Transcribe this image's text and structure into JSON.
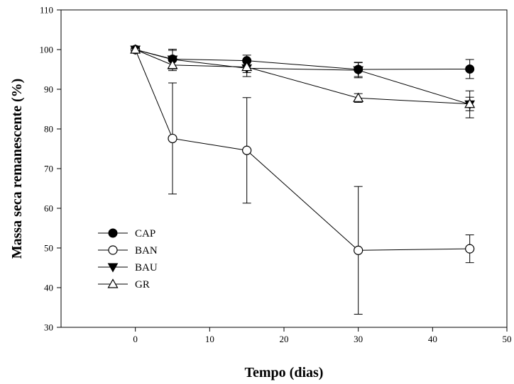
{
  "chart_data": {
    "type": "line",
    "xlabel": "Tempo (dias)",
    "ylabel": "Massa seca remanescente (%)",
    "xlim": [
      -10,
      50
    ],
    "ylim": [
      30,
      110
    ],
    "xticks": [
      0,
      10,
      20,
      30,
      40,
      50
    ],
    "yticks": [
      30,
      40,
      50,
      60,
      70,
      80,
      90,
      100,
      110
    ],
    "grid": false,
    "legend_position": "bottom-left",
    "series": [
      {
        "name": "CAP",
        "marker": "circle-filled",
        "x": [
          0,
          5,
          15,
          30,
          45
        ],
        "y": [
          100,
          97.6,
          97.2,
          95,
          95.1
        ],
        "err": [
          0,
          2.5,
          1.4,
          1.8,
          2.4
        ]
      },
      {
        "name": "BAN",
        "marker": "circle-open",
        "x": [
          0,
          5,
          15,
          30,
          45
        ],
        "y": [
          100,
          77.6,
          74.6,
          49.4,
          49.8
        ],
        "err": [
          0,
          14,
          13.3,
          16.1,
          3.5
        ]
      },
      {
        "name": "BAU",
        "marker": "triangle-down-filled",
        "x": [
          0,
          5,
          15,
          30,
          45
        ],
        "y": [
          100,
          97.5,
          95.3,
          94.8,
          86.2
        ],
        "err": [
          0,
          2.3,
          2.1,
          1.9,
          3.4
        ]
      },
      {
        "name": "GR",
        "marker": "triangle-up-open",
        "x": [
          0,
          5,
          15,
          30,
          45
        ],
        "y": [
          100,
          96.1,
          95.6,
          87.8,
          86.3
        ],
        "err": [
          0,
          1.4,
          1.4,
          1.1,
          1.7
        ]
      }
    ]
  }
}
